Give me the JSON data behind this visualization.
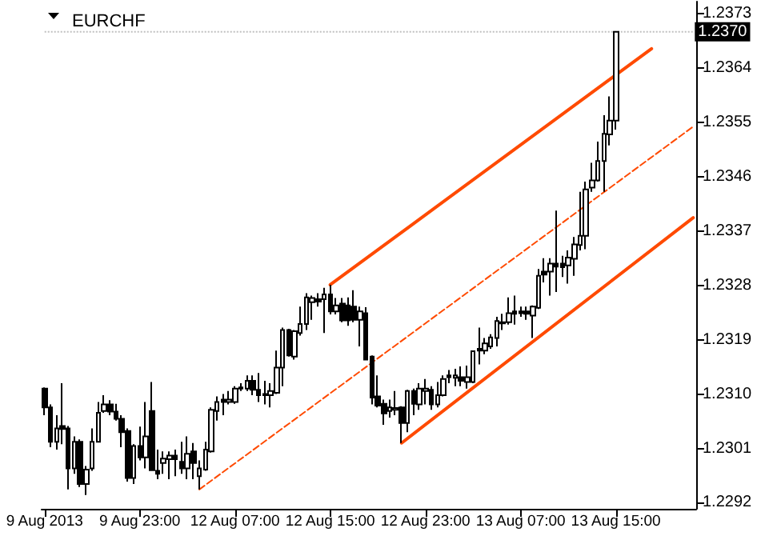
{
  "chart_data": {
    "type": "candlestick",
    "title": "EURCHF",
    "color": "#000000",
    "categories": [
      "9 Aug 2013",
      null,
      null,
      null,
      null,
      null,
      null,
      null,
      null,
      null,
      null,
      null,
      null,
      null,
      null,
      null,
      "9 Aug 23:00",
      null,
      null,
      null,
      null,
      null,
      null,
      null,
      null,
      null,
      null,
      null,
      null,
      null,
      null,
      null,
      "12 Aug 07:00",
      null,
      null,
      null,
      null,
      null,
      null,
      null,
      null,
      null,
      null,
      null,
      null,
      null,
      null,
      null,
      "12 Aug 15:00",
      null,
      null,
      null,
      null,
      null,
      null,
      null,
      null,
      null,
      null,
      null,
      null,
      null,
      null,
      null,
      "12 Aug 23:00",
      null,
      null,
      null,
      null,
      null,
      null,
      null,
      null,
      null,
      null,
      null,
      null,
      null,
      null,
      null,
      "13 Aug 07:00",
      null,
      null,
      null,
      null,
      null,
      null,
      null,
      null,
      null,
      null,
      null,
      null,
      null,
      null,
      null,
      "13 Aug 15:00",
      null,
      null,
      null,
      null,
      null,
      null,
      null,
      null,
      null,
      null,
      null,
      null,
      null
    ],
    "ohlc": [
      [
        1.23109,
        1.23111,
        1.23065,
        1.23078
      ],
      [
        1.23078,
        1.23083,
        1.23012,
        1.23021
      ],
      [
        1.23021,
        1.23065,
        1.23008,
        1.23043
      ],
      [
        1.23047,
        1.23118,
        1.23017,
        1.23042
      ],
      [
        1.23043,
        1.23047,
        1.22942,
        1.22977
      ],
      [
        1.22977,
        1.2303,
        1.22968,
        1.23021
      ],
      [
        1.23021,
        1.23025,
        1.22946,
        1.22951
      ],
      [
        1.22951,
        1.22981,
        1.22933,
        1.22975
      ],
      [
        1.22977,
        1.23043,
        1.22973,
        1.23021
      ],
      [
        1.23021,
        1.23087,
        1.23021,
        1.23069
      ],
      [
        1.23072,
        1.23098,
        1.23069,
        1.23083
      ],
      [
        1.23083,
        1.2309,
        1.23065,
        1.23071
      ],
      [
        1.23071,
        1.23084,
        1.23056,
        1.23059
      ],
      [
        1.23059,
        1.23065,
        1.23012,
        1.23037
      ],
      [
        1.23039,
        1.23043,
        1.22955,
        1.22961
      ],
      [
        1.22961,
        1.23017,
        1.22951,
        1.23014
      ],
      [
        1.23014,
        1.23046,
        1.2299,
        1.22995
      ],
      [
        1.22995,
        1.23087,
        1.22977,
        1.2303
      ],
      [
        1.23072,
        1.2312,
        1.22973,
        1.22974
      ],
      [
        1.22973,
        1.23008,
        1.22959,
        1.22968
      ],
      [
        1.22986,
        1.23005,
        1.22968,
        1.22993
      ],
      [
        1.22992,
        1.23005,
        1.22959,
        1.22998
      ],
      [
        1.22998,
        1.23008,
        1.22964,
        1.22992
      ],
      [
        1.22988,
        1.23021,
        1.22968,
        1.22977
      ],
      [
        1.22977,
        1.2303,
        1.22959,
        1.23001
      ],
      [
        1.23005,
        1.23019,
        1.22959,
        1.22986
      ],
      [
        1.22964,
        1.2299,
        1.22942,
        1.22977
      ],
      [
        1.22975,
        1.23021,
        1.22973,
        1.23008
      ],
      [
        1.23005,
        1.23078,
        1.23003,
        1.23074
      ],
      [
        1.23072,
        1.23096,
        1.23056,
        1.23087
      ],
      [
        1.23091,
        1.231,
        1.23065,
        1.23087
      ],
      [
        1.23087,
        1.23105,
        1.23083,
        1.23091
      ],
      [
        1.23087,
        1.23113,
        1.23084,
        1.23109
      ],
      [
        1.23111,
        1.23118,
        1.23105,
        1.23109
      ],
      [
        1.23109,
        1.23131,
        1.23105,
        1.23122
      ],
      [
        1.23122,
        1.23131,
        1.23098,
        1.23107
      ],
      [
        1.23107,
        1.23135,
        1.23087,
        1.23098
      ],
      [
        1.231,
        1.23122,
        1.23083,
        1.23098
      ],
      [
        1.23098,
        1.23118,
        1.23078,
        1.23105
      ],
      [
        1.23102,
        1.23172,
        1.231,
        1.23144
      ],
      [
        1.23144,
        1.2321,
        1.23113,
        1.23206
      ],
      [
        1.23206,
        1.23208,
        1.23162,
        1.23164
      ],
      [
        1.23162,
        1.23206,
        1.23157,
        1.23204
      ],
      [
        1.23201,
        1.23245,
        1.23197,
        1.23216
      ],
      [
        1.23216,
        1.23267,
        1.23206,
        1.2326
      ],
      [
        1.23252,
        1.23263,
        1.23223,
        1.23259
      ],
      [
        1.23257,
        1.23267,
        1.23245,
        1.23253
      ],
      [
        1.23257,
        1.23276,
        1.23201,
        1.23265
      ],
      [
        1.23265,
        1.23281,
        1.23232,
        1.23237
      ],
      [
        1.23237,
        1.23259,
        1.23232,
        1.23247
      ],
      [
        1.2325,
        1.23259,
        1.23219,
        1.23222
      ],
      [
        1.23247,
        1.2326,
        1.23213,
        1.23222
      ],
      [
        1.23245,
        1.23272,
        1.23219,
        1.23223
      ],
      [
        1.23223,
        1.23245,
        1.23179,
        1.23237
      ],
      [
        1.23234,
        1.23244,
        1.23156,
        1.23157
      ],
      [
        1.23162,
        1.23164,
        1.23083,
        1.23094
      ],
      [
        1.23096,
        1.23131,
        1.23078,
        1.23081
      ],
      [
        1.23084,
        1.23091,
        1.23049,
        1.23068
      ],
      [
        1.23072,
        1.23091,
        1.23061,
        1.23078
      ],
      [
        1.23074,
        1.23105,
        1.23065,
        1.23077
      ],
      [
        1.23078,
        1.2308,
        1.23019,
        1.23052
      ],
      [
        1.23052,
        1.23107,
        1.23037,
        1.23105
      ],
      [
        1.23105,
        1.23109,
        1.23065,
        1.23084
      ],
      [
        1.23083,
        1.23118,
        1.23074,
        1.23109
      ],
      [
        1.23105,
        1.23125,
        1.23083,
        1.23109
      ],
      [
        1.23107,
        1.23113,
        1.23074,
        1.23083
      ],
      [
        1.23083,
        1.2312,
        1.23078,
        1.23098
      ],
      [
        1.23098,
        1.23131,
        1.23096,
        1.23125
      ],
      [
        1.23131,
        1.2314,
        1.23118,
        1.23128
      ],
      [
        1.23127,
        1.23142,
        1.23113,
        1.23131
      ],
      [
        1.23128,
        1.23146,
        1.23113,
        1.23122
      ],
      [
        1.2312,
        1.23147,
        1.23109,
        1.23128
      ],
      [
        1.2312,
        1.23172,
        1.23118,
        1.23171
      ],
      [
        1.23175,
        1.2321,
        1.23149,
        1.23172
      ],
      [
        1.23172,
        1.23193,
        1.23166,
        1.23184
      ],
      [
        1.23179,
        1.23199,
        1.23175,
        1.23194
      ],
      [
        1.23193,
        1.23228,
        1.23179,
        1.23221
      ],
      [
        1.23217,
        1.23233,
        1.23206,
        1.23219
      ],
      [
        1.23219,
        1.2326,
        1.23215,
        1.23234
      ],
      [
        1.23237,
        1.23263,
        1.23215,
        1.23233
      ],
      [
        1.23237,
        1.23245,
        1.23228,
        1.23234
      ],
      [
        1.23237,
        1.23245,
        1.23223,
        1.23233
      ],
      [
        1.2323,
        1.23247,
        1.23193,
        1.23245
      ],
      [
        1.23243,
        1.23307,
        1.23241,
        1.23296
      ],
      [
        1.23303,
        1.23325,
        1.23285,
        1.23298
      ],
      [
        1.23303,
        1.23325,
        1.23263,
        1.23316
      ],
      [
        1.23316,
        1.23404,
        1.23269,
        1.23311
      ],
      [
        1.23316,
        1.23329,
        1.23294,
        1.2331
      ],
      [
        1.23313,
        1.23338,
        1.23283,
        1.23326
      ],
      [
        1.23324,
        1.2336,
        1.23296,
        1.23348
      ],
      [
        1.23347,
        1.23435,
        1.23338,
        1.23362
      ],
      [
        1.23362,
        1.23452,
        1.2334,
        1.23439
      ],
      [
        1.23442,
        1.23483,
        1.23435,
        1.23454
      ],
      [
        1.23454,
        1.23518,
        1.23452,
        1.23486
      ],
      [
        1.23486,
        1.23562,
        1.23435,
        1.23531
      ],
      [
        1.2353,
        1.23593,
        1.23512,
        1.23553
      ],
      [
        1.23553,
        1.237,
        1.23538,
        1.237
      ],
      null,
      null,
      null,
      null,
      null,
      null,
      null,
      null,
      null,
      null,
      null,
      null,
      null
    ],
    "series": [
      {
        "type": "line",
        "color": "#ff4a00",
        "line_style": "solid",
        "values": [
          null,
          null,
          null,
          null,
          null,
          null,
          null,
          null,
          null,
          null,
          null,
          null,
          null,
          null,
          null,
          null,
          null,
          null,
          null,
          null,
          null,
          null,
          null,
          null,
          null,
          null,
          null,
          null,
          null,
          null,
          null,
          null,
          null,
          null,
          null,
          null,
          null,
          null,
          null,
          null,
          null,
          null,
          null,
          null,
          null,
          null,
          null,
          null,
          1.23281,
          null,
          null,
          null,
          null,
          null,
          null,
          null,
          null,
          null,
          null,
          null,
          null,
          null,
          null,
          null,
          null,
          null,
          null,
          null,
          null,
          null,
          null,
          null,
          null,
          null,
          null,
          null,
          null,
          null,
          null,
          null,
          null,
          null,
          null,
          null,
          null,
          null,
          null,
          null,
          null,
          null,
          null,
          null,
          null,
          null,
          null,
          null,
          null,
          null,
          null,
          null,
          null,
          null,
          1.23672,
          null,
          null,
          null,
          null,
          null,
          null,
          null
        ]
      },
      {
        "type": "line",
        "color": "#ff4a00",
        "line_style": "dashed",
        "values": [
          null,
          null,
          null,
          null,
          null,
          null,
          null,
          null,
          null,
          null,
          null,
          null,
          null,
          null,
          null,
          null,
          null,
          null,
          null,
          null,
          null,
          null,
          null,
          null,
          null,
          null,
          1.22942,
          null,
          null,
          null,
          null,
          null,
          null,
          null,
          null,
          null,
          null,
          null,
          null,
          null,
          null,
          null,
          null,
          null,
          null,
          null,
          null,
          null,
          null,
          null,
          null,
          null,
          null,
          null,
          null,
          null,
          null,
          null,
          null,
          null,
          null,
          null,
          null,
          null,
          null,
          null,
          null,
          null,
          null,
          null,
          null,
          null,
          null,
          null,
          null,
          null,
          null,
          null,
          null,
          null,
          null,
          null,
          null,
          null,
          null,
          null,
          null,
          null,
          null,
          null,
          null,
          null,
          null,
          null,
          null,
          null,
          null,
          null,
          null,
          null,
          null,
          null,
          null,
          null,
          null,
          null,
          null,
          null,
          null,
          1.23543
        ]
      },
      {
        "type": "line",
        "color": "#ff4a00",
        "line_style": "solid",
        "values": [
          null,
          null,
          null,
          null,
          null,
          null,
          null,
          null,
          null,
          null,
          null,
          null,
          null,
          null,
          null,
          null,
          null,
          null,
          null,
          null,
          null,
          null,
          null,
          null,
          null,
          null,
          null,
          null,
          null,
          null,
          null,
          null,
          null,
          null,
          null,
          null,
          null,
          null,
          null,
          null,
          null,
          null,
          null,
          null,
          null,
          null,
          null,
          null,
          null,
          null,
          null,
          null,
          null,
          null,
          null,
          null,
          null,
          null,
          null,
          null,
          1.23019,
          null,
          null,
          null,
          null,
          null,
          null,
          null,
          null,
          null,
          null,
          null,
          null,
          null,
          null,
          null,
          null,
          null,
          null,
          null,
          null,
          null,
          null,
          null,
          null,
          null,
          null,
          null,
          null,
          null,
          null,
          null,
          null,
          null,
          null,
          null,
          null,
          null,
          null,
          null,
          null,
          null,
          null,
          null,
          null,
          null,
          null,
          null,
          null,
          1.23392
        ]
      }
    ],
    "ylim": [
      1.2291,
      1.2375
    ],
    "yticks": [
      1.2292,
      1.2301,
      {
        "value": 1.231,
        "label": "1.2310"
      },
      1.2319,
      1.2328,
      1.2337,
      1.2346,
      1.2355,
      1.2364,
      1.2373
    ],
    "ref_lines": [
      {
        "axis": "y",
        "value": 1.237,
        "label": "1.2370",
        "color": "#c0c0c0",
        "line_style": "dotted"
      }
    ]
  }
}
